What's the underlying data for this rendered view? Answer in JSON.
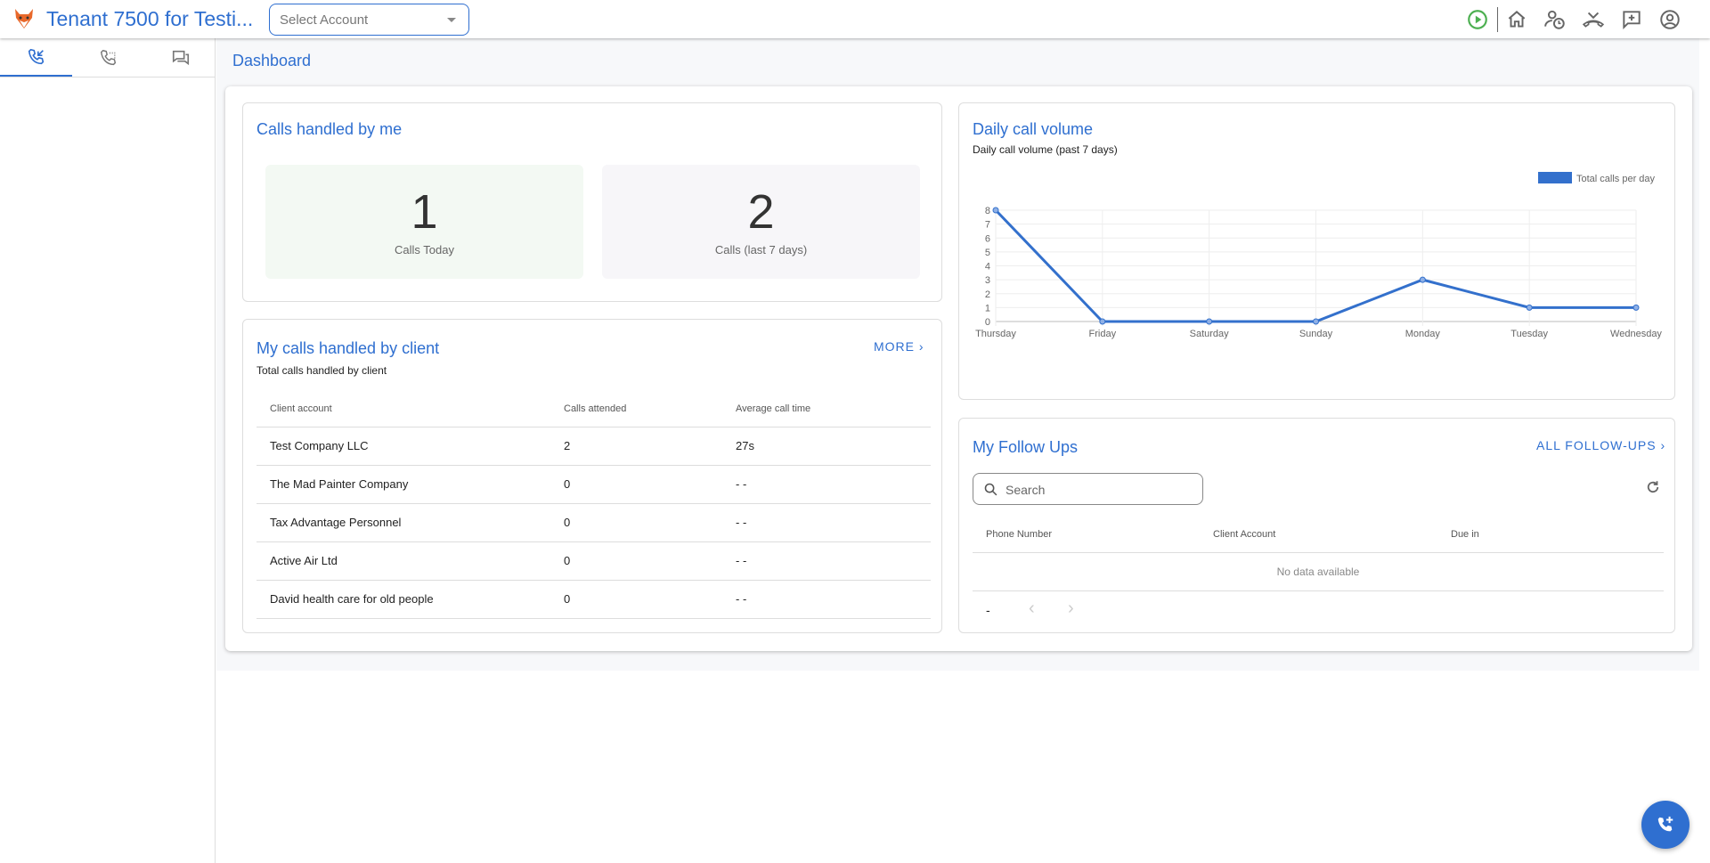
{
  "header": {
    "title": "Tenant 7500 for Testi...",
    "account_placeholder": "Select Account"
  },
  "sidebar": {
    "tabs": [
      "incoming-calls",
      "call-history",
      "chats"
    ],
    "active": 0
  },
  "page_title": "Dashboard",
  "calls_handled": {
    "title": "Calls handled by me",
    "stats": [
      {
        "value": "1",
        "label": "Calls Today"
      },
      {
        "value": "2",
        "label": "Calls (last 7 days)"
      }
    ]
  },
  "by_client": {
    "title": "My calls handled by client",
    "subtitle": "Total calls handled by client",
    "more": "MORE",
    "columns": [
      "Client account",
      "Calls attended",
      "Average call time"
    ],
    "rows": [
      [
        "Test Company LLC",
        "2",
        "27s"
      ],
      [
        "The Mad Painter Company",
        "0",
        "- -"
      ],
      [
        "Tax Advantage Personnel",
        "0",
        "- -"
      ],
      [
        "Active Air Ltd",
        "0",
        "- -"
      ],
      [
        "David health care for old people",
        "0",
        "- -"
      ]
    ]
  },
  "daily": {
    "title": "Daily call volume",
    "subtitle": "Daily call volume (past 7 days)"
  },
  "chart_data": {
    "type": "line",
    "categories": [
      "Thursday",
      "Friday",
      "Saturday",
      "Sunday",
      "Monday",
      "Tuesday",
      "Wednesday"
    ],
    "series": [
      {
        "name": "Total calls per day",
        "values": [
          8,
          0,
          0,
          0,
          3,
          1,
          1
        ]
      }
    ],
    "ylim": [
      0,
      8
    ],
    "yticks": [
      "0",
      "1",
      "2",
      "3",
      "4",
      "5",
      "6",
      "7",
      "8"
    ],
    "grid": true,
    "legend": "top-right",
    "color": "#3370cc"
  },
  "followups": {
    "title": "My Follow Ups",
    "all": "ALL FOLLOW-UPS",
    "search_placeholder": "Search",
    "columns": [
      "Phone Number",
      "Client Account",
      "Due in"
    ],
    "empty": "No data available",
    "pagination": "-"
  }
}
